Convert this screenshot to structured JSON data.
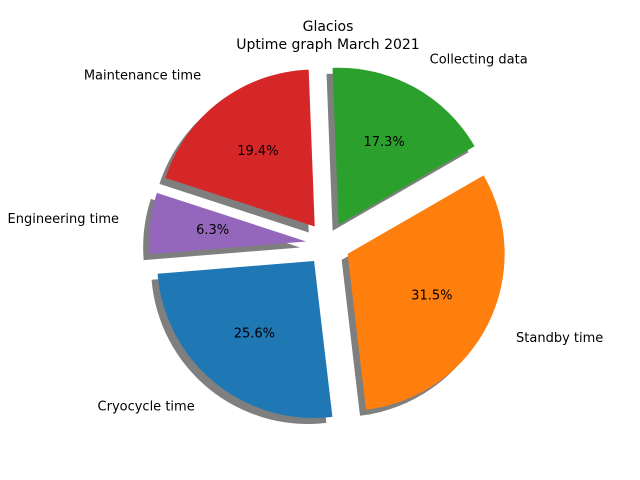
{
  "chart_data": {
    "type": "pie",
    "title": "Glacios",
    "subtitle": "Uptime graph March 2021",
    "slices": [
      {
        "label": "Collecting data",
        "value": 17.3,
        "pct_label": "17.3%",
        "color": "#2ca02c",
        "exploded": true
      },
      {
        "label": "Maintenance time",
        "value": 19.4,
        "pct_label": "19.4%",
        "color": "#d62728",
        "exploded": true
      },
      {
        "label": "Engineering time",
        "value": 6.3,
        "pct_label": "6.3%",
        "color": "#9467bd",
        "exploded": true
      },
      {
        "label": "Cryocycle time",
        "value": 25.6,
        "pct_label": "25.6%",
        "color": "#1f77b4",
        "exploded": true
      },
      {
        "label": "Standby time",
        "value": 31.5,
        "pct_label": "31.5%",
        "color": "#ff7f0e",
        "exploded": true
      }
    ],
    "start_angle_deg": 30,
    "direction": "counterclockwise",
    "shadow": true
  }
}
